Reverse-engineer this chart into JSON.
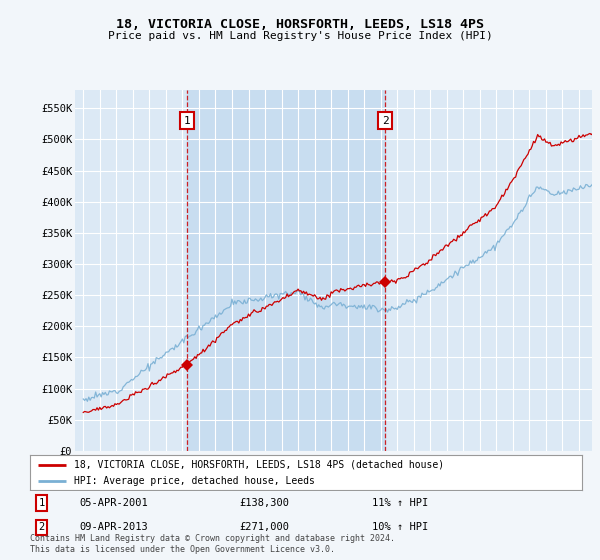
{
  "title": "18, VICTORIA CLOSE, HORSFORTH, LEEDS, LS18 4PS",
  "subtitle": "Price paid vs. HM Land Registry's House Price Index (HPI)",
  "annotation1_date": "05-APR-2001",
  "annotation1_price": "£138,300",
  "annotation1_hpi": "11% ↑ HPI",
  "annotation2_date": "09-APR-2013",
  "annotation2_price": "£271,000",
  "annotation2_hpi": "10% ↑ HPI",
  "legend1": "18, VICTORIA CLOSE, HORSFORTH, LEEDS, LS18 4PS (detached house)",
  "legend2": "HPI: Average price, detached house, Leeds",
  "footer": "Contains HM Land Registry data © Crown copyright and database right 2024.\nThis data is licensed under the Open Government Licence v3.0.",
  "sale1_x": 2001.27,
  "sale2_x": 2013.27,
  "sale1_y": 138300,
  "sale2_y": 271000,
  "ylim_max": 580000,
  "yticks": [
    0,
    50000,
    100000,
    150000,
    200000,
    250000,
    300000,
    350000,
    400000,
    450000,
    500000,
    550000
  ],
  "ytick_labels": [
    "£0",
    "£50K",
    "£100K",
    "£150K",
    "£200K",
    "£250K",
    "£300K",
    "£350K",
    "£400K",
    "£450K",
    "£500K",
    "£550K"
  ],
  "plot_bg": "#dce9f5",
  "shade_bg": "#c8ddf0",
  "grid_color": "#ffffff",
  "outer_bg": "#f0f4f8",
  "red_color": "#cc0000",
  "blue_color": "#7ab0d4",
  "xmin": 1994.5,
  "xmax": 2025.8
}
